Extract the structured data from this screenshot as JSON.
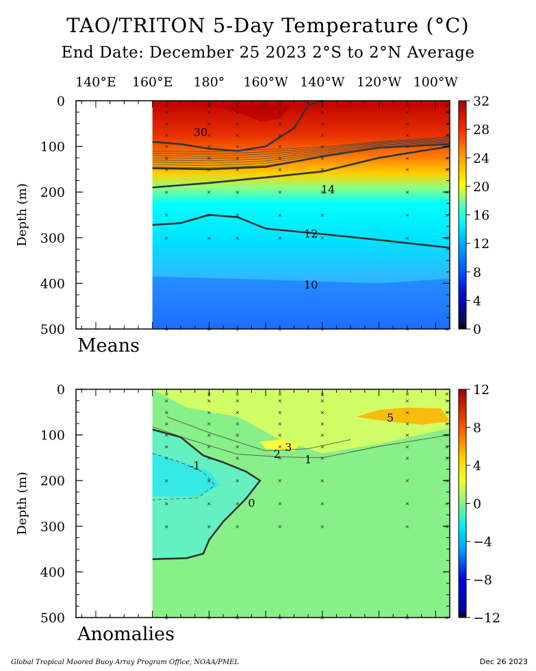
{
  "header": {
    "title": "TAO/TRITON 5-Day Temperature (°C)",
    "subtitle": "End Date: December 25 2023  2°S to 2°N Average"
  },
  "footer": {
    "credit": "Global Tropical Moored Buoy Array Program Office, NOAA/PMEL",
    "date": "Dec 26 2023"
  },
  "chart_data": [
    {
      "type": "heatmap",
      "panel_label": "Means",
      "ylabel": "Depth (m)",
      "xlabel": "",
      "x_tick_labels": [
        "140°E",
        "160°E",
        "180°",
        "160°W",
        "140°W",
        "120°W",
        "100°W"
      ],
      "x_ticks_deg_east": [
        140,
        160,
        180,
        200,
        220,
        240,
        260
      ],
      "xlim_deg_east": [
        133,
        265
      ],
      "data_xlim_deg_east": [
        160,
        265
      ],
      "y_ticks": [
        0,
        100,
        200,
        300,
        400,
        500
      ],
      "ylim": [
        0,
        500
      ],
      "y_inverted": true,
      "colorbar": {
        "ticks": [
          0,
          4,
          8,
          12,
          16,
          20,
          24,
          28,
          32
        ],
        "range": [
          0,
          32
        ]
      },
      "contour_labels": [
        {
          "text": "30",
          "lon": 177,
          "depth": 70
        },
        {
          "text": "14",
          "lon": 222,
          "depth": 195
        },
        {
          "text": "12",
          "lon": 216,
          "depth": 292
        },
        {
          "text": "10",
          "lon": 216,
          "depth": 404
        }
      ],
      "isotherms": [
        {
          "value": 30,
          "lon": [
            160,
            170,
            180,
            190,
            200,
            210,
            215,
            220
          ],
          "depth": [
            90,
            95,
            105,
            110,
            100,
            60,
            10,
            0
          ]
        },
        {
          "value": 20,
          "lon": [
            160,
            180,
            200,
            220,
            240,
            265
          ],
          "depth": [
            148,
            150,
            145,
            122,
            103,
            95
          ]
        },
        {
          "value": 14,
          "lon": [
            160,
            180,
            200,
            220,
            240,
            265
          ],
          "depth": [
            190,
            180,
            168,
            155,
            125,
            100
          ]
        },
        {
          "value": 12,
          "lon": [
            160,
            170,
            180,
            190,
            200,
            220,
            240,
            265
          ],
          "depth": [
            272,
            268,
            250,
            255,
            280,
            292,
            305,
            322
          ]
        }
      ]
    },
    {
      "type": "heatmap",
      "panel_label": "Anomalies",
      "ylabel": "Depth (m)",
      "xlabel": "",
      "x_ticks_deg_east": [
        140,
        160,
        180,
        200,
        220,
        240,
        260
      ],
      "xlim_deg_east": [
        133,
        265
      ],
      "data_xlim_deg_east": [
        160,
        265
      ],
      "y_ticks": [
        0,
        100,
        200,
        300,
        400,
        500
      ],
      "ylim": [
        0,
        500
      ],
      "y_inverted": true,
      "colorbar": {
        "ticks": [
          -12,
          -8,
          -4,
          0,
          4,
          8,
          12
        ],
        "range": [
          -12,
          12
        ]
      },
      "contour_labels": [
        {
          "text": "5",
          "lon": 244,
          "depth": 63
        },
        {
          "text": "3",
          "lon": 208,
          "depth": 128
        },
        {
          "text": "2",
          "lon": 204,
          "depth": 143
        },
        {
          "text": "1",
          "lon": 215,
          "depth": 155
        },
        {
          "text": "-1",
          "lon": 175,
          "depth": 168
        },
        {
          "text": "0",
          "lon": 195,
          "depth": 250
        }
      ],
      "zero_contour": {
        "lon": [
          160,
          170,
          178,
          185,
          193,
          198,
          193,
          185,
          180,
          178,
          172,
          160
        ],
        "depth": [
          88,
          105,
          145,
          160,
          180,
          200,
          240,
          290,
          330,
          360,
          370,
          372
        ]
      }
    }
  ],
  "colors": {
    "means_scale": [
      "#0c0c50",
      "#0000c0",
      "#0050ff",
      "#00a8ff",
      "#00f5ff",
      "#60ffb0",
      "#ffff00",
      "#ffa000",
      "#ff3000",
      "#b00000"
    ],
    "anomaly_scale": [
      "#000000",
      "#0000c0",
      "#00d8ff",
      "#88f088",
      "#ffff00",
      "#ff4000",
      "#a00000"
    ]
  }
}
